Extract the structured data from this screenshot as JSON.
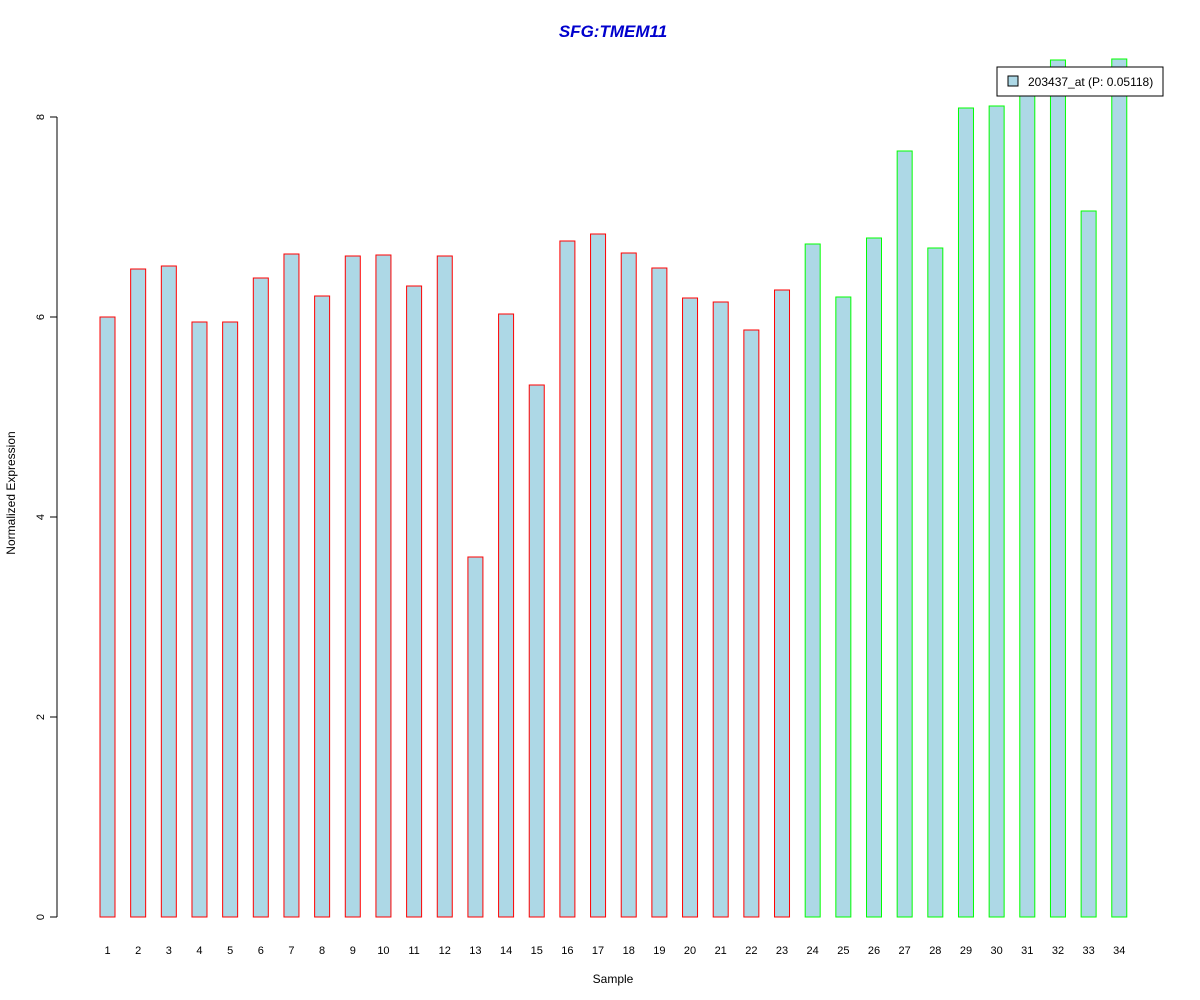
{
  "chart_data": {
    "type": "bar",
    "title": "SFG:TMEM11",
    "xlabel": "Sample",
    "ylabel": "Normalized Expression",
    "ylim": [
      0,
      8.6
    ],
    "yticks": [
      0,
      2,
      4,
      6,
      8
    ],
    "grid": false,
    "legend_position": "top-right",
    "categories": [
      "1",
      "2",
      "3",
      "4",
      "5",
      "6",
      "7",
      "8",
      "9",
      "10",
      "11",
      "12",
      "13",
      "14",
      "15",
      "16",
      "17",
      "18",
      "19",
      "20",
      "21",
      "22",
      "23",
      "24",
      "25",
      "26",
      "27",
      "28",
      "29",
      "30",
      "31",
      "32",
      "33",
      "34"
    ],
    "groups": [
      "red",
      "red",
      "red",
      "red",
      "red",
      "red",
      "red",
      "red",
      "red",
      "red",
      "red",
      "red",
      "red",
      "red",
      "red",
      "red",
      "red",
      "red",
      "red",
      "red",
      "red",
      "red",
      "red",
      "green",
      "green",
      "green",
      "green",
      "green",
      "green",
      "green",
      "green",
      "green",
      "green",
      "green"
    ],
    "series": [
      {
        "name": "203437_at (P: 0.05118)",
        "values": [
          6.0,
          6.48,
          6.51,
          5.95,
          5.95,
          6.39,
          6.63,
          6.21,
          6.61,
          6.62,
          6.31,
          6.61,
          3.6,
          6.03,
          5.32,
          6.76,
          6.83,
          6.64,
          6.49,
          6.19,
          6.15,
          5.87,
          6.27,
          6.73,
          6.2,
          6.79,
          7.66,
          6.69,
          8.09,
          8.11,
          8.25,
          8.57,
          7.06,
          8.58
        ]
      }
    ],
    "colors": {
      "fill": "#add8e6",
      "group_red": "#ff0000",
      "group_green": "#00ff00",
      "title": "#0000cd",
      "axis": "#000000"
    }
  }
}
